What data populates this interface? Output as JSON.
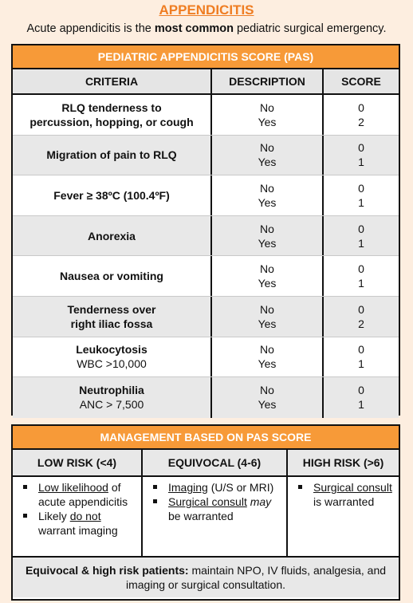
{
  "title": "APPENDICITIS",
  "subtitle": {
    "pre": "Acute appendicitis is the ",
    "bold": "most common",
    "post": " pediatric surgical emergency."
  },
  "pas": {
    "heading": "PEDIATRIC APPENDICITIS SCORE (PAS)",
    "columns": [
      "CRITERIA",
      "DESCRIPTION",
      "SCORE"
    ],
    "rows": [
      {
        "criteria": [
          "RLQ tenderness to",
          "percussion, hopping, or cough"
        ],
        "sub": "",
        "desc": [
          "No",
          "Yes"
        ],
        "score": [
          "0",
          "2"
        ]
      },
      {
        "criteria": [
          "Migration of pain to RLQ"
        ],
        "sub": "",
        "desc": [
          "No",
          "Yes"
        ],
        "score": [
          "0",
          "1"
        ]
      },
      {
        "criteria": [
          "Fever ≥ 38ºC (100.4ºF)"
        ],
        "sub": "",
        "desc": [
          "No",
          "Yes"
        ],
        "score": [
          "0",
          "1"
        ]
      },
      {
        "criteria": [
          "Anorexia"
        ],
        "sub": "",
        "desc": [
          "No",
          "Yes"
        ],
        "score": [
          "0",
          "1"
        ]
      },
      {
        "criteria": [
          "Nausea or vomiting"
        ],
        "sub": "",
        "desc": [
          "No",
          "Yes"
        ],
        "score": [
          "0",
          "1"
        ]
      },
      {
        "criteria": [
          "Tenderness over",
          "right iliac fossa"
        ],
        "sub": "",
        "desc": [
          "No",
          "Yes"
        ],
        "score": [
          "0",
          "2"
        ]
      },
      {
        "criteria": [
          "Leukocytosis"
        ],
        "sub": "WBC >10,000",
        "desc": [
          "No",
          "Yes"
        ],
        "score": [
          "0",
          "1"
        ]
      },
      {
        "criteria": [
          "Neutrophilia"
        ],
        "sub": "ANC > 7,500",
        "desc": [
          "No",
          "Yes"
        ],
        "score": [
          "0",
          "1"
        ]
      }
    ]
  },
  "management": {
    "heading": "MANAGEMENT BASED ON PAS SCORE",
    "low": {
      "label": "LOW RISK (<4)",
      "b1_u": "Low likelihood",
      "b1_rest": " of acute appendicitis",
      "b2_pre": "Likely ",
      "b2_u": "do not",
      "b2_post": " warrant imaging"
    },
    "equivocal": {
      "label": "EQUIVOCAL (4-6)",
      "b1_u": "Imaging",
      "b1_rest": " (U/S or MRI)",
      "b2_u": "Surgical consult",
      "b2_it": "may",
      "b2_post": " be warranted"
    },
    "high": {
      "label": "HIGH RISK (>6)",
      "b1_u": "Surgical consult",
      "b1_rest": " is warranted"
    },
    "footer_bold": "Equivocal & high risk patients:",
    "footer_rest": " maintain NPO, IV fluids, analgesia, and imaging or surgical consultation."
  },
  "colors": {
    "accent": "#f79a38",
    "title": "#ef7d22",
    "background": "#fdeee0"
  }
}
